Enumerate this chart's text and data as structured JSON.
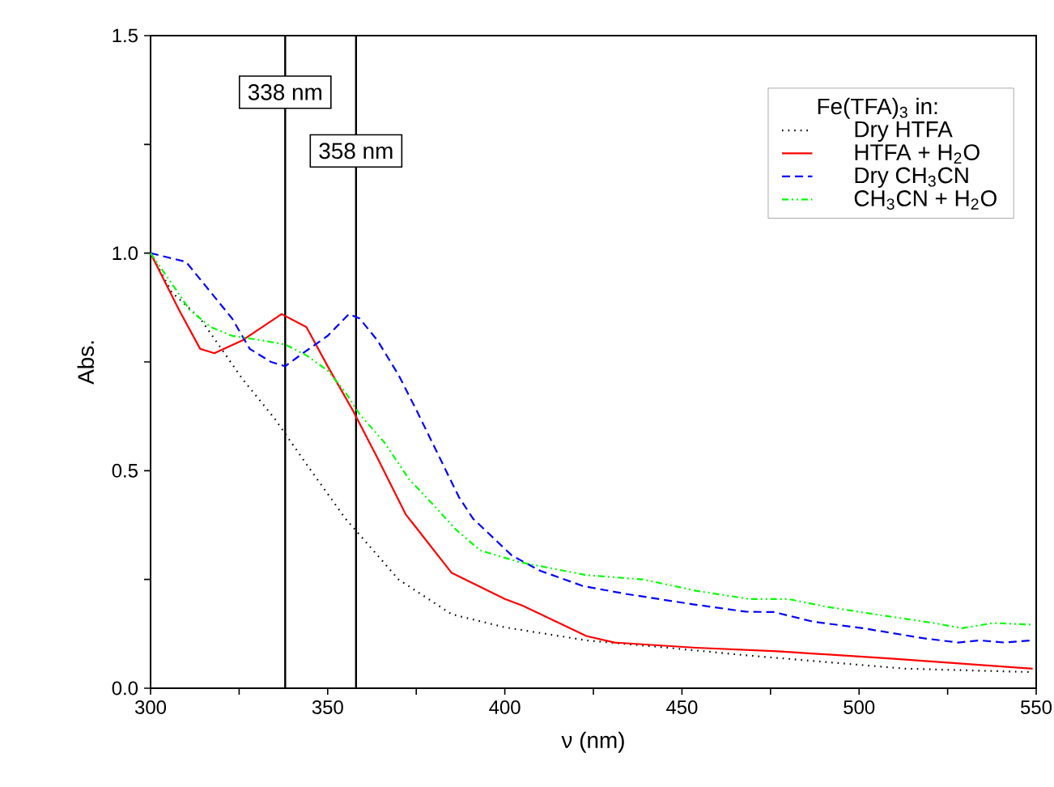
{
  "chart_data": {
    "type": "line",
    "xlabel": "ν (nm)",
    "ylabel": "Abs.",
    "legend_title": "Fe(TFA)$_{3}$ in:",
    "legend": "top right",
    "xlim": [
      300,
      550
    ],
    "ylim": [
      0,
      1.5
    ],
    "xticks": [
      300,
      {
        "value": 325,
        "label": null
      },
      350,
      {
        "value": 375,
        "label": null
      },
      400,
      {
        "value": 425,
        "label": null
      },
      450,
      {
        "value": 475,
        "label": null
      },
      500,
      {
        "value": 525,
        "label": null
      },
      550
    ],
    "yticks": [
      {
        "value": 0,
        "label": "0.0"
      },
      {
        "value": 0.25,
        "label": null
      },
      {
        "value": 0.5,
        "label": "0.5"
      },
      {
        "value": 0.75,
        "label": null
      },
      {
        "value": 1.0,
        "label": "1.0"
      },
      {
        "value": 1.25,
        "label": null
      },
      {
        "value": 1.5,
        "label": "1.5"
      }
    ],
    "ref_lines": [
      {
        "axis": "x",
        "value": 338,
        "label": "338 nm",
        "color": "#000000"
      },
      {
        "axis": "x",
        "value": 358,
        "label": "358 nm",
        "color": "#000000"
      }
    ],
    "series": [
      {
        "name": "Dry HTFA",
        "color": "#000000",
        "line_style": "dotted",
        "x": [
          300,
          306,
          314,
          320,
          326,
          335,
          344,
          355,
          370,
          385,
          400,
          423,
          446,
          469,
          513,
          549
        ],
        "values": [
          1.0,
          0.91,
          0.85,
          0.78,
          0.71,
          0.62,
          0.515,
          0.39,
          0.25,
          0.17,
          0.14,
          0.11,
          0.093,
          0.075,
          0.045,
          0.037
        ]
      },
      {
        "name": "HTFA + H$_{2}$O",
        "color": "#ff0000",
        "line_style": "solid",
        "x": [
          300,
          308,
          314,
          318,
          326,
          337,
          344,
          350,
          357,
          364,
          372,
          385,
          400,
          405,
          423,
          431,
          454,
          477,
          509,
          549
        ],
        "values": [
          1.0,
          0.87,
          0.78,
          0.77,
          0.8,
          0.86,
          0.83,
          0.74,
          0.64,
          0.53,
          0.4,
          0.265,
          0.205,
          0.19,
          0.12,
          0.105,
          0.093,
          0.085,
          0.068,
          0.045
        ]
      },
      {
        "name": "Dry CH$_{3}$CN",
        "color": "#0000ff",
        "line_style": "dashed",
        "x": [
          300,
          305,
          310,
          317,
          323,
          328,
          334,
          338,
          343,
          350,
          356,
          359,
          364,
          370,
          375,
          381,
          387,
          391,
          402,
          410,
          422,
          434,
          453,
          468,
          476,
          487,
          501,
          518,
          528,
          534,
          541,
          549
        ],
        "values": [
          1.0,
          0.99,
          0.98,
          0.91,
          0.85,
          0.78,
          0.75,
          0.74,
          0.77,
          0.81,
          0.86,
          0.85,
          0.8,
          0.72,
          0.64,
          0.54,
          0.44,
          0.39,
          0.305,
          0.27,
          0.235,
          0.217,
          0.193,
          0.176,
          0.175,
          0.153,
          0.138,
          0.115,
          0.105,
          0.11,
          0.105,
          0.11
        ]
      },
      {
        "name": "CH$_{3}$CN + H$_{2}$O",
        "color": "#00ff00",
        "line_style": "dashdotted",
        "x": [
          300,
          306,
          311,
          317,
          323,
          331,
          338,
          344,
          350,
          355,
          359,
          366,
          373,
          380,
          386,
          393,
          404,
          423,
          439,
          454,
          469,
          480,
          491,
          506,
          521,
          529,
          538,
          549
        ],
        "values": [
          1.0,
          0.93,
          0.87,
          0.83,
          0.81,
          0.8,
          0.79,
          0.765,
          0.73,
          0.68,
          0.63,
          0.565,
          0.48,
          0.42,
          0.366,
          0.317,
          0.29,
          0.26,
          0.25,
          0.224,
          0.205,
          0.205,
          0.187,
          0.168,
          0.15,
          0.138,
          0.15,
          0.146
        ]
      }
    ]
  }
}
